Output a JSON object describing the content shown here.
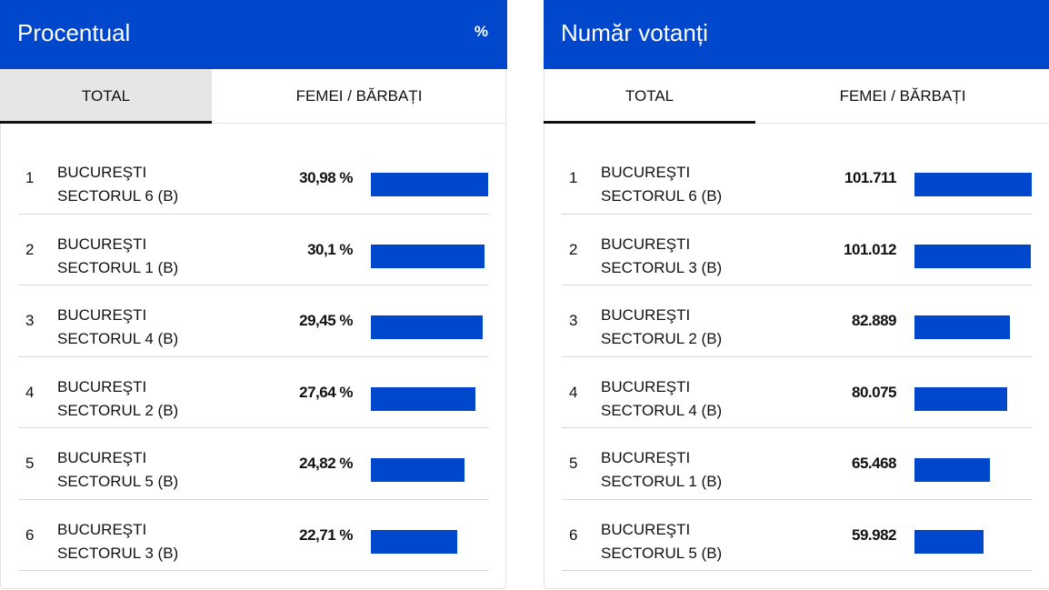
{
  "colors": {
    "accent": "#0047cc",
    "active_tab_bg": "#e6e6e6"
  },
  "left": {
    "title": "Procentual",
    "unit": "%",
    "tabs": [
      {
        "label": "TOTAL",
        "active": true
      },
      {
        "label": "FEMEI / BĂRBAȚI",
        "active": false
      }
    ],
    "rows": [
      {
        "rank": "1",
        "city": "BUCUREŞTI",
        "sector": "SECTORUL 6 (B)",
        "value": "30,98 %",
        "num": 30.98
      },
      {
        "rank": "2",
        "city": "BUCUREŞTI",
        "sector": "SECTORUL 1 (B)",
        "value": "30,1 %",
        "num": 30.1
      },
      {
        "rank": "3",
        "city": "BUCUREŞTI",
        "sector": "SECTORUL 4 (B)",
        "value": "29,45 %",
        "num": 29.45
      },
      {
        "rank": "4",
        "city": "BUCUREŞTI",
        "sector": "SECTORUL 2 (B)",
        "value": "27,64 %",
        "num": 27.64
      },
      {
        "rank": "5",
        "city": "BUCUREŞTI",
        "sector": "SECTORUL 5 (B)",
        "value": "24,82 %",
        "num": 24.82
      },
      {
        "rank": "6",
        "city": "BUCUREŞTI",
        "sector": "SECTORUL 3 (B)",
        "value": "22,71 %",
        "num": 22.71
      }
    ]
  },
  "right": {
    "title": "Număr votanți",
    "tabs": [
      {
        "label": "TOTAL",
        "active": true
      },
      {
        "label": "FEMEI / BĂRBAȚI",
        "active": false
      }
    ],
    "rows": [
      {
        "rank": "1",
        "city": "BUCUREŞTI",
        "sector": "SECTORUL 6 (B)",
        "value": "101.711",
        "num": 101711
      },
      {
        "rank": "2",
        "city": "BUCUREŞTI",
        "sector": "SECTORUL 3 (B)",
        "value": "101.012",
        "num": 101012
      },
      {
        "rank": "3",
        "city": "BUCUREŞTI",
        "sector": "SECTORUL 2 (B)",
        "value": "82.889",
        "num": 82889
      },
      {
        "rank": "4",
        "city": "BUCUREŞTI",
        "sector": "SECTORUL 4 (B)",
        "value": "80.075",
        "num": 80075
      },
      {
        "rank": "5",
        "city": "BUCUREŞTI",
        "sector": "SECTORUL 1 (B)",
        "value": "65.468",
        "num": 65468
      },
      {
        "rank": "6",
        "city": "BUCUREŞTI",
        "sector": "SECTORUL 5 (B)",
        "value": "59.982",
        "num": 59982
      }
    ]
  }
}
